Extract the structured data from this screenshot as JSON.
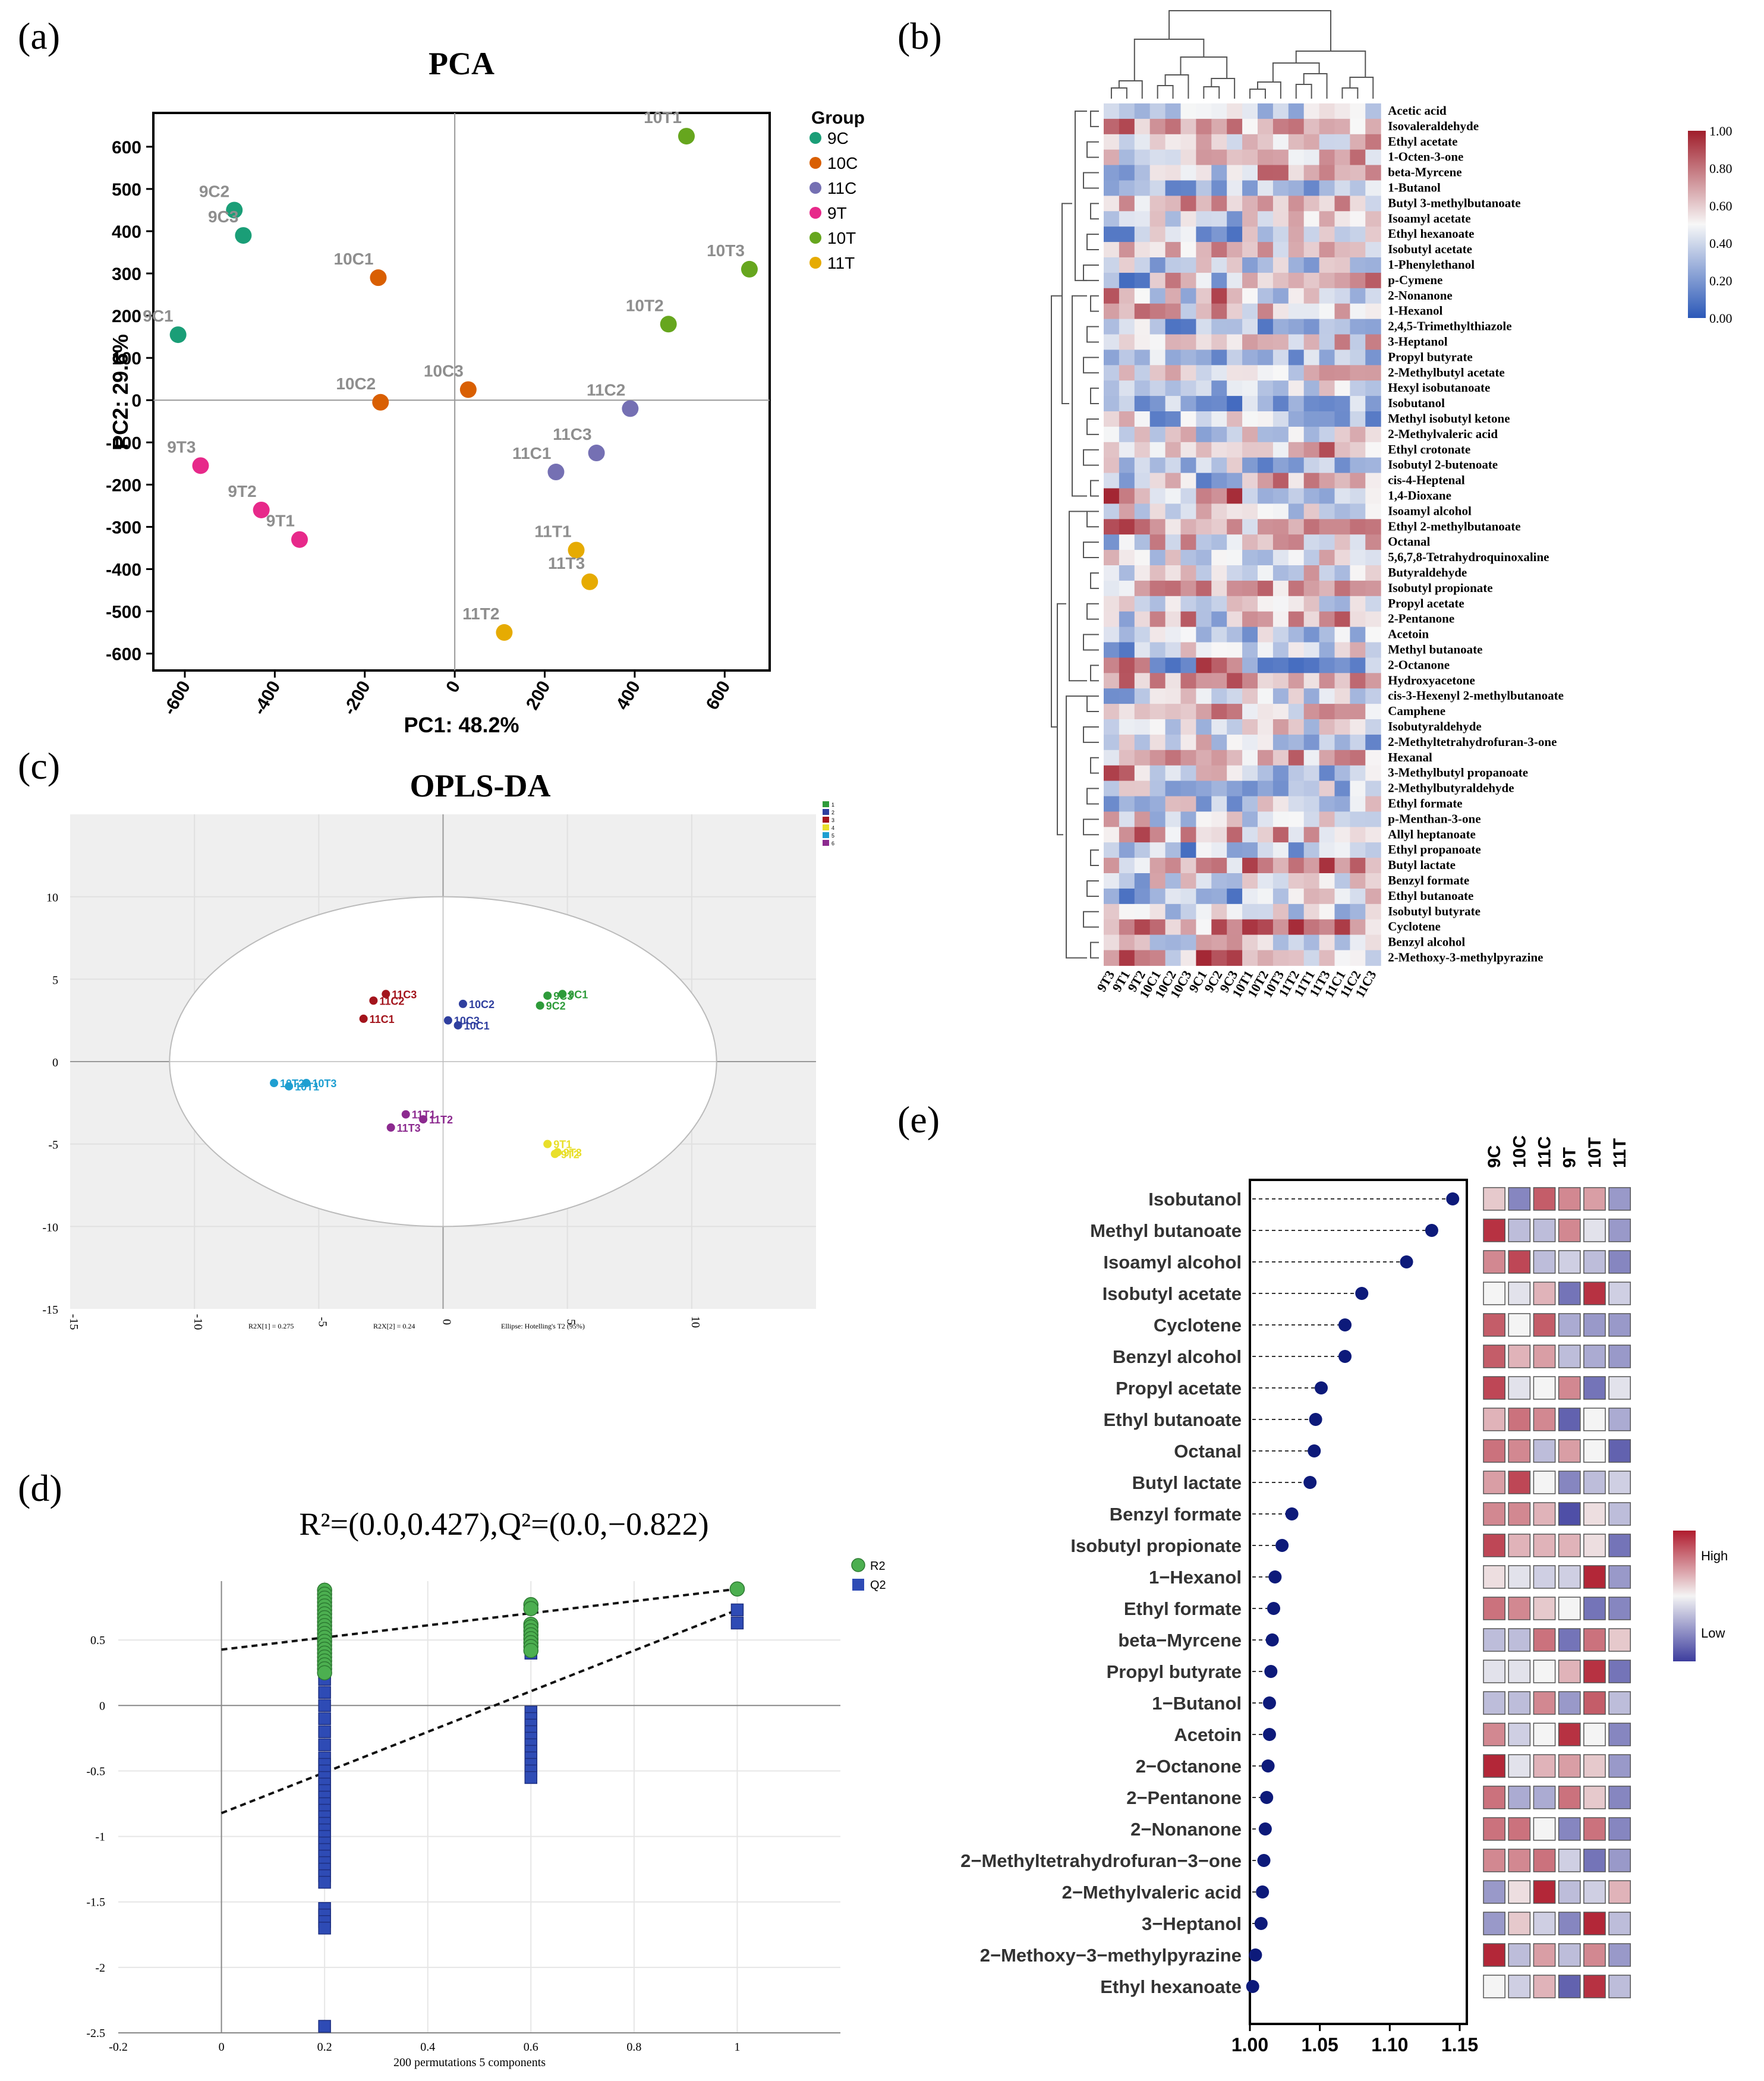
{
  "panel_labels": [
    "(a)",
    "(b)",
    "(c)",
    "(d)",
    "(e)"
  ],
  "colors": {
    "9C": "#1a9e77",
    "10C": "#d95f02",
    "11C": "#7570b3",
    "9T": "#e7298a",
    "10T": "#66a61e",
    "11T": "#e6ab02",
    "heat_low": "#2b58b8",
    "heat_mid": "#f7f7f7",
    "heat_high": "#a01e2b",
    "opls_1": "#2e9b3a",
    "opls_2": "#2f3f9f",
    "opls_3": "#a3141c",
    "opls_4": "#e9df2a",
    "opls_5": "#1f9fd1",
    "opls_6": "#8c2a8f",
    "r2": "#4caf50",
    "q2": "#2e4bb5",
    "lollipop": "#0d1a7a"
  },
  "chart_data": [
    {
      "panel": "(a)",
      "type": "scatter",
      "title": "PCA",
      "xlabel": "PC1: 48.2%",
      "ylabel": "PC2: 29.6%",
      "xlim": [
        -670,
        700
      ],
      "ylim": [
        -640,
        680
      ],
      "xticks": [
        -600,
        -400,
        -200,
        0,
        200,
        400,
        600
      ],
      "yticks": [
        -600,
        -500,
        -400,
        -300,
        -200,
        -100,
        0,
        100,
        200,
        300,
        400,
        500,
        600
      ],
      "legend_title": "Group",
      "legend": [
        "9C",
        "10C",
        "11C",
        "9T",
        "10T",
        "11T"
      ],
      "points": [
        {
          "label": "9C1",
          "group": "9C",
          "x": -615,
          "y": 155
        },
        {
          "label": "9C2",
          "group": "9C",
          "x": -490,
          "y": 450
        },
        {
          "label": "9C3",
          "group": "9C",
          "x": -470,
          "y": 390
        },
        {
          "label": "10C1",
          "group": "10C",
          "x": -170,
          "y": 290
        },
        {
          "label": "10C2",
          "group": "10C",
          "x": -165,
          "y": -5
        },
        {
          "label": "10C3",
          "group": "10C",
          "x": 30,
          "y": 25
        },
        {
          "label": "11C1",
          "group": "11C",
          "x": 225,
          "y": -170
        },
        {
          "label": "11C2",
          "group": "11C",
          "x": 390,
          "y": -20
        },
        {
          "label": "11C3",
          "group": "11C",
          "x": 315,
          "y": -125
        },
        {
          "label": "9T1",
          "group": "9T",
          "x": -345,
          "y": -330
        },
        {
          "label": "9T2",
          "group": "9T",
          "x": -430,
          "y": -260
        },
        {
          "label": "9T3",
          "group": "9T",
          "x": -565,
          "y": -155
        },
        {
          "label": "10T1",
          "group": "10T",
          "x": 515,
          "y": 625
        },
        {
          "label": "10T2",
          "group": "10T",
          "x": 475,
          "y": 180
        },
        {
          "label": "10T3",
          "group": "10T",
          "x": 655,
          "y": 310
        },
        {
          "label": "11T1",
          "group": "11T",
          "x": 270,
          "y": -355
        },
        {
          "label": "11T2",
          "group": "11T",
          "x": 110,
          "y": -550
        },
        {
          "label": "11T3",
          "group": "11T",
          "x": 300,
          "y": -430
        }
      ]
    },
    {
      "panel": "(b)",
      "type": "heatmap",
      "columns": [
        "9T3",
        "9T1",
        "9T2",
        "10C1",
        "10C2",
        "10C3",
        "9C1",
        "9C2",
        "9C3",
        "10T1",
        "10T2",
        "10T3",
        "11T2",
        "11T1",
        "11T3",
        "11C1",
        "11C2",
        "11C3"
      ],
      "rows": [
        "Acetic acid",
        "Isovaleraldehyde",
        "Ethyl acetate",
        "1-Octen-3-one",
        "beta-Myrcene",
        "1-Butanol",
        "Butyl 3-methylbutanoate",
        "Isoamyl acetate",
        "Ethyl hexanoate",
        "Isobutyl acetate",
        "1-Phenylethanol",
        "p-Cymene",
        "2-Nonanone",
        "1-Hexanol",
        "2,4,5-Trimethylthiazole",
        "3-Heptanol",
        "Propyl butyrate",
        "2-Methylbutyl acetate",
        "Hexyl isobutanoate",
        "Isobutanol",
        "Methyl isobutyl ketone",
        "2-Methylvaleric acid",
        "Ethyl crotonate",
        "Isobutyl 2-butenoate",
        "cis-4-Heptenal",
        "1,4-Dioxane",
        "Isoamyl alcohol",
        "Ethyl 2-methylbutanoate",
        "Octanal",
        "5,6,7,8-Tetrahydroquinoxaline",
        "Butyraldehyde",
        "Isobutyl propionate",
        "Propyl acetate",
        "2-Pentanone",
        "Acetoin",
        "Methyl butanoate",
        "2-Octanone",
        "Hydroxyacetone",
        "cis-3-Hexenyl 2-methylbutanoate",
        "Camphene",
        "Isobutyraldehyde",
        "2-Methyltetrahydrofuran-3-one",
        "Hexanal",
        "3-Methylbutyl propanoate",
        "2-Methylbutyraldehyde",
        "Ethyl formate",
        "p-Menthan-3-one",
        "Allyl heptanoate",
        "Ethyl propanoate",
        "Butyl lactate",
        "Benzyl formate",
        "Ethyl butanoate",
        "Isobutyl butyrate",
        "Cyclotene",
        "Benzyl alcohol",
        "2-Methoxy-3-methylpyrazine"
      ],
      "colorbar_ticks": [
        "1.00",
        "0.80",
        "0.60",
        "0.40",
        "0.20",
        "0.00"
      ]
    },
    {
      "panel": "(c)",
      "type": "scatter",
      "title": "OPLS-DA",
      "xlim": [
        -15,
        15
      ],
      "ylim": [
        -15,
        15
      ],
      "xticks": [
        "-15",
        "-10",
        "-5",
        "0",
        "5",
        "10"
      ],
      "yticks": [
        "10",
        "5",
        "0",
        "-5",
        "-10",
        "-15"
      ],
      "footer": [
        "R2X[1] = 0.275",
        "R2X[2] = 0.24",
        "Ellipse: Hotelling's T2 (95%)"
      ],
      "legend": [
        "1",
        "2",
        "3",
        "4",
        "5",
        "6"
      ],
      "points": [
        {
          "label": "11C2",
          "group": "3",
          "x": -2.8,
          "y": 3.7
        },
        {
          "label": "11C3",
          "group": "3",
          "x": -2.3,
          "y": 4.1
        },
        {
          "label": "11C1",
          "group": "3",
          "x": -3.2,
          "y": 2.6
        },
        {
          "label": "10C2",
          "group": "2",
          "x": 0.8,
          "y": 3.5
        },
        {
          "label": "10C3",
          "group": "2",
          "x": 0.2,
          "y": 2.5
        },
        {
          "label": "10C1",
          "group": "2",
          "x": 0.6,
          "y": 2.2
        },
        {
          "label": "9C3",
          "group": "1",
          "x": 4.2,
          "y": 4.0
        },
        {
          "label": "9C1",
          "group": "1",
          "x": 4.8,
          "y": 4.1
        },
        {
          "label": "9C2",
          "group": "1",
          "x": 3.9,
          "y": 3.4
        },
        {
          "label": "10T2",
          "group": "5",
          "x": -6.8,
          "y": -1.3
        },
        {
          "label": "10T3",
          "group": "5",
          "x": -5.5,
          "y": -1.3
        },
        {
          "label": "10T1",
          "group": "5",
          "x": -6.2,
          "y": -1.5
        },
        {
          "label": "11T1",
          "group": "6",
          "x": -1.5,
          "y": -3.2
        },
        {
          "label": "11T2",
          "group": "6",
          "x": -0.8,
          "y": -3.5
        },
        {
          "label": "11T3",
          "group": "6",
          "x": -2.1,
          "y": -4.0
        },
        {
          "label": "9T1",
          "group": "4",
          "x": 4.2,
          "y": -5.0
        },
        {
          "label": "9T3",
          "group": "4",
          "x": 4.6,
          "y": -5.5
        },
        {
          "label": "9T2",
          "group": "4",
          "x": 4.5,
          "y": -5.6
        }
      ]
    },
    {
      "panel": "(d)",
      "type": "scatter",
      "title": "R²=(0.0,0.427),Q²=(0.0,−0.822)",
      "xlabel": "200 permutations 5 components",
      "xlim": [
        -0.2,
        1.2
      ],
      "ylim": [
        -2.5,
        0.95
      ],
      "xticks": [
        "-0.2",
        "0",
        "0.2",
        "0.4",
        "0.6",
        "0.8",
        "1"
      ],
      "yticks": [
        "0.5",
        "0",
        "-0.5",
        "-1",
        "-1.5",
        "-2",
        "-2.5"
      ],
      "legend": [
        "R2",
        "Q2"
      ],
      "r2_line": {
        "x": [
          0,
          1
        ],
        "y": [
          0.427,
          0.89
        ]
      },
      "q2_line": {
        "x": [
          0,
          1
        ],
        "y": [
          -0.822,
          0.73
        ]
      },
      "r2_points": {
        "x": [
          0.2,
          0.2,
          0.2,
          0.2,
          0.2,
          0.2,
          0.2,
          0.2,
          0.2,
          0.2,
          0.2,
          0.2,
          0.2,
          0.2,
          0.2,
          0.2,
          0.2,
          0.2,
          0.2,
          0.2,
          0.2,
          0.2,
          0.6,
          0.6,
          0.6,
          0.6,
          0.6,
          0.6,
          0.6,
          0.6,
          0.6,
          0.6,
          1
        ],
        "y": [
          0.88,
          0.85,
          0.82,
          0.79,
          0.76,
          0.73,
          0.7,
          0.67,
          0.64,
          0.61,
          0.58,
          0.55,
          0.52,
          0.49,
          0.46,
          0.43,
          0.4,
          0.37,
          0.34,
          0.31,
          0.28,
          0.25,
          0.77,
          0.74,
          0.62,
          0.6,
          0.57,
          0.54,
          0.51,
          0.48,
          0.45,
          0.42,
          0.89
        ]
      },
      "q2_points": {
        "x": [
          0.2,
          0.2,
          0.2,
          0.2,
          0.2,
          0.2,
          0.2,
          0.2,
          0.2,
          0.2,
          0.2,
          0.2,
          0.2,
          0.2,
          0.2,
          0.2,
          0.2,
          0.2,
          0.2,
          0.2,
          0.2,
          0.2,
          0.2,
          0.2,
          0.2,
          0.2,
          0.2,
          0.2,
          0.2,
          0.2,
          0.2,
          0.2,
          0.2,
          0.2,
          0.2,
          0.2,
          0.2,
          0.6,
          0.6,
          0.6,
          0.6,
          0.6,
          0.6,
          0.6,
          0.6,
          0.6,
          0.6,
          0.6,
          0.6,
          0.6,
          0.6,
          1,
          1
        ],
        "y": [
          0.5,
          0.45,
          0.4,
          0.35,
          0.3,
          0.25,
          0.2,
          0.1,
          0.0,
          -0.1,
          -0.2,
          -0.3,
          -0.4,
          -0.45,
          -0.5,
          -0.55,
          -0.6,
          -0.65,
          -0.7,
          -0.75,
          -0.8,
          -0.85,
          -0.9,
          -0.95,
          -1.0,
          -1.05,
          -1.1,
          -1.15,
          -1.2,
          -1.25,
          -1.3,
          -1.35,
          -1.55,
          -1.6,
          -1.65,
          -1.7,
          -2.45,
          0.5,
          0.45,
          0.4,
          -0.05,
          -0.1,
          -0.15,
          -0.2,
          -0.25,
          -0.3,
          -0.35,
          -0.4,
          -0.45,
          -0.5,
          -0.55,
          0.73,
          0.63
        ]
      }
    },
    {
      "panel": "(e)",
      "type": "scatter",
      "subtype": "lollipop",
      "xlim": [
        1.0,
        1.15
      ],
      "xticks": [
        "1.00",
        "1.05",
        "1.10",
        "1.15"
      ],
      "heat_columns": [
        "9C",
        "10C",
        "11C",
        "9T",
        "10T",
        "11T"
      ],
      "legend": [
        "High",
        "Low"
      ],
      "compounds": [
        "Isobutanol",
        "Methyl butanoate",
        "Isoamyl alcohol",
        "Isobutyl acetate",
        "Cyclotene",
        "Benzyl alcohol",
        "Propyl acetate",
        "Ethyl butanoate",
        "Octanal",
        "Butyl lactate",
        "Benzyl formate",
        "Isobutyl propionate",
        "1−Hexanol",
        "Ethyl formate",
        "beta−Myrcene",
        "Propyl butyrate",
        "1−Butanol",
        "Acetoin",
        "2−Octanone",
        "2−Pentanone",
        "2−Nonanone",
        "2−Methyltetrahydrofuran−3−one",
        "2−Methylvaleric acid",
        "3−Heptanol",
        "2−Methoxy−3−methylpyrazine",
        "Ethyl hexanoate"
      ],
      "vip": [
        1.145,
        1.13,
        1.112,
        1.08,
        1.068,
        1.068,
        1.051,
        1.047,
        1.046,
        1.043,
        1.03,
        1.023,
        1.018,
        1.017,
        1.016,
        1.015,
        1.014,
        1.014,
        1.013,
        1.012,
        1.011,
        1.01,
        1.009,
        1.008,
        1.004,
        1.002
      ],
      "heat_values": [
        [
          0.2,
          -0.6,
          0.7,
          0.5,
          0.4,
          -0.5
        ],
        [
          0.9,
          -0.3,
          -0.3,
          0.5,
          -0.1,
          -0.5
        ],
        [
          0.5,
          0.8,
          -0.3,
          -0.2,
          -0.3,
          -0.6
        ],
        [
          0.0,
          -0.1,
          0.3,
          -0.7,
          0.9,
          -0.2
        ],
        [
          0.7,
          0.0,
          0.7,
          -0.4,
          -0.5,
          -0.5
        ],
        [
          0.7,
          0.3,
          0.4,
          -0.3,
          -0.4,
          -0.5
        ],
        [
          0.8,
          -0.1,
          0.0,
          0.5,
          -0.7,
          -0.1
        ],
        [
          0.3,
          0.6,
          0.5,
          -0.8,
          0.0,
          -0.4
        ],
        [
          0.6,
          0.5,
          -0.3,
          0.4,
          0.0,
          -0.8
        ],
        [
          0.4,
          0.8,
          0.0,
          -0.6,
          -0.3,
          -0.2
        ],
        [
          0.5,
          0.5,
          0.3,
          -0.9,
          0.1,
          -0.3
        ],
        [
          0.8,
          0.3,
          0.3,
          0.3,
          0.1,
          -0.7
        ],
        [
          0.1,
          -0.1,
          -0.2,
          -0.2,
          0.95,
          -0.5
        ],
        [
          0.6,
          0.5,
          0.2,
          0.0,
          -0.7,
          -0.6
        ],
        [
          -0.3,
          -0.3,
          0.6,
          -0.7,
          0.6,
          0.2
        ],
        [
          -0.1,
          -0.1,
          0.0,
          0.3,
          0.9,
          -0.7
        ],
        [
          -0.3,
          -0.3,
          0.5,
          -0.5,
          0.7,
          -0.3
        ],
        [
          0.5,
          -0.2,
          0.0,
          0.9,
          0.0,
          -0.6
        ],
        [
          0.95,
          -0.1,
          0.3,
          0.4,
          0.2,
          -0.5
        ],
        [
          0.6,
          -0.4,
          -0.4,
          0.6,
          0.2,
          -0.6
        ],
        [
          0.6,
          0.6,
          0.0,
          -0.6,
          0.6,
          -0.6
        ],
        [
          0.5,
          0.5,
          0.6,
          -0.2,
          -0.7,
          -0.5
        ],
        [
          -0.5,
          0.1,
          0.95,
          -0.3,
          -0.2,
          0.3
        ],
        [
          -0.5,
          0.2,
          -0.2,
          -0.6,
          0.95,
          -0.3
        ],
        [
          0.95,
          -0.3,
          0.4,
          -0.3,
          0.5,
          -0.5
        ],
        [
          0.0,
          -0.2,
          0.3,
          -0.8,
          0.9,
          -0.3
        ]
      ]
    }
  ]
}
